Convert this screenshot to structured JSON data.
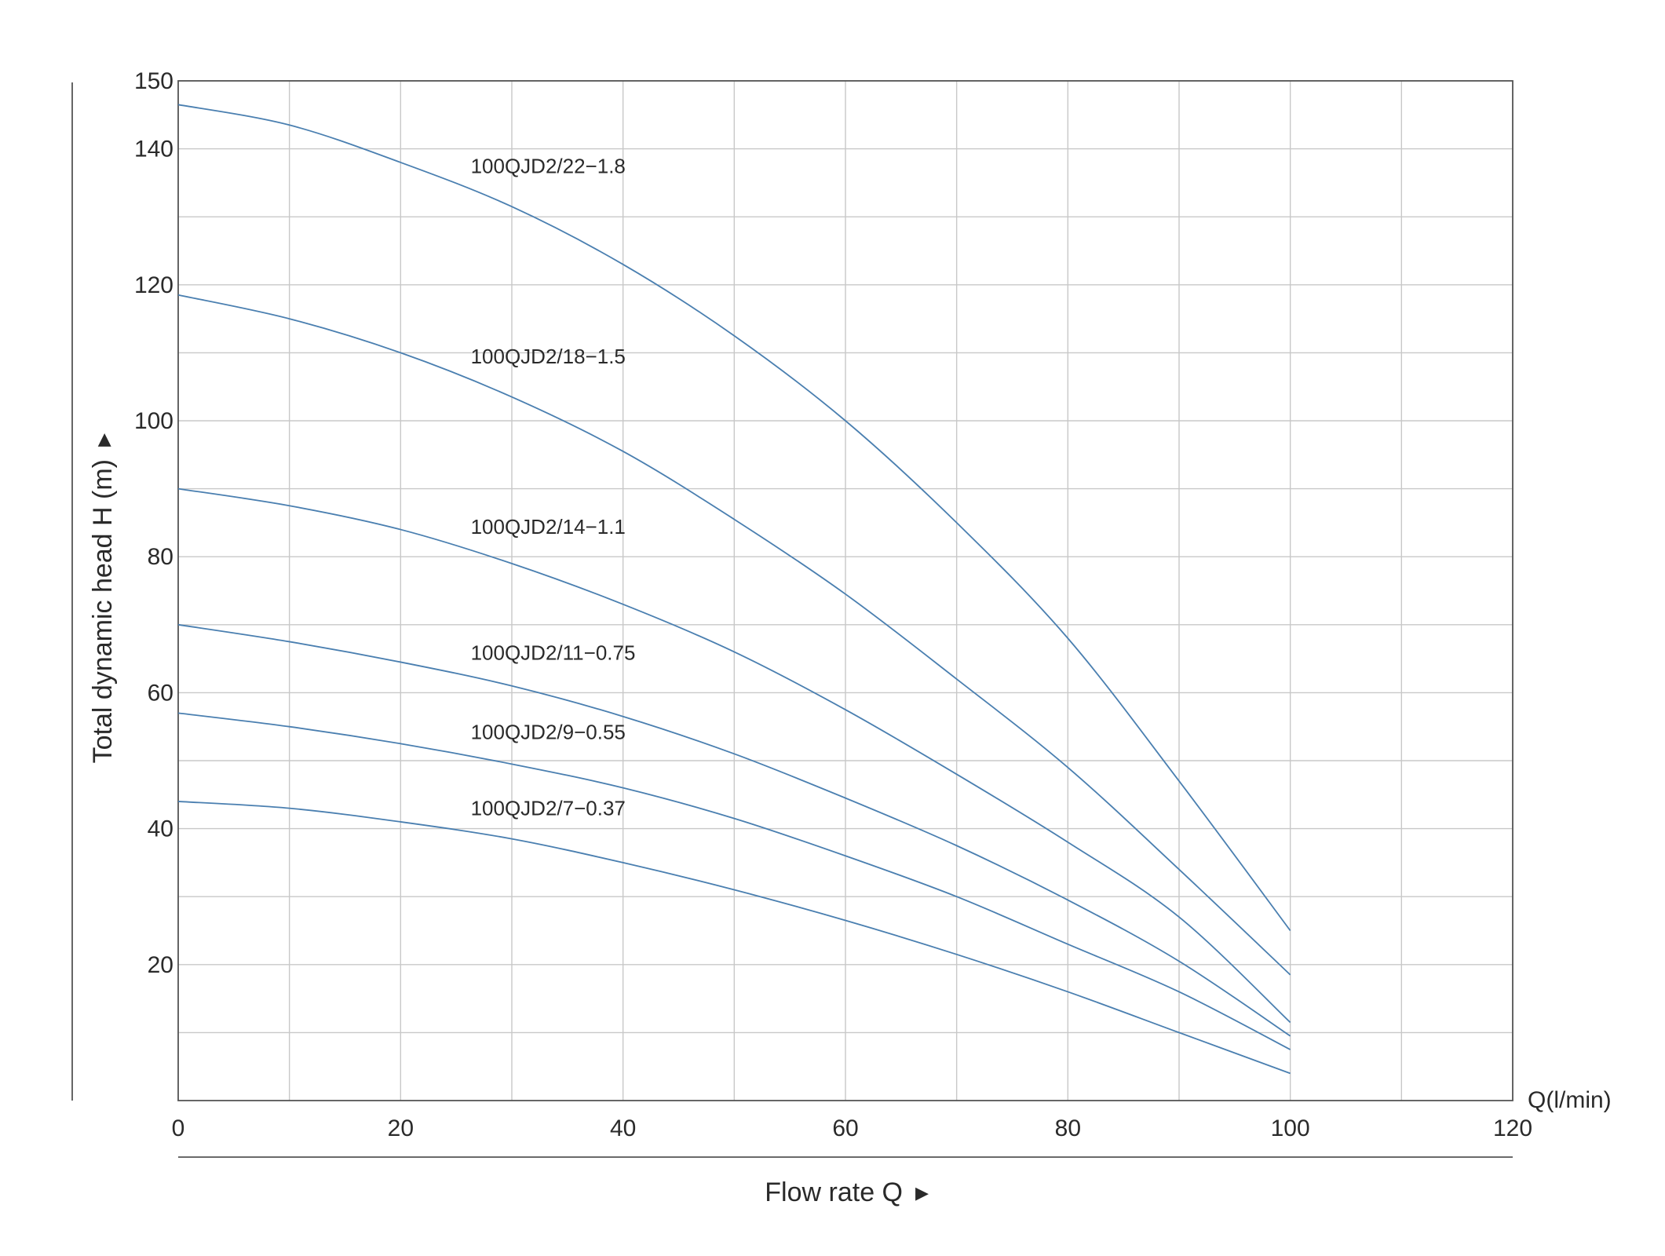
{
  "colors": {
    "curve": "#4a7fb0",
    "grid": "#c8c8c8",
    "frame": "#555555",
    "text": "#2a2a2a"
  },
  "chart_data": {
    "type": "line",
    "xlabel": "Flow rate Q",
    "xlabel_arrow": "▸",
    "ylabel": "Total dynamic head H (m)",
    "ylabel_arrow": "▸",
    "x_unit_label": "Q(l/min)",
    "xlim": [
      0,
      120
    ],
    "ylim": [
      0,
      150
    ],
    "x_ticks": [
      0,
      20,
      40,
      60,
      80,
      100,
      120
    ],
    "y_ticks": [
      20,
      40,
      60,
      80,
      100,
      120,
      140,
      150
    ],
    "x_grid": [
      0,
      10,
      20,
      30,
      40,
      50,
      60,
      70,
      80,
      90,
      100,
      110,
      120
    ],
    "y_grid": [
      10,
      20,
      30,
      40,
      50,
      60,
      70,
      80,
      90,
      100,
      110,
      120,
      130,
      140,
      150
    ],
    "grid": true,
    "x": [
      0,
      10,
      20,
      30,
      40,
      50,
      60,
      70,
      80,
      90,
      100
    ],
    "series": [
      {
        "name": "100QJD2/22−1.8",
        "values": [
          146.5,
          143.5,
          138,
          131.5,
          123,
          112.5,
          100,
          85,
          68,
          47,
          25
        ]
      },
      {
        "name": "100QJD2/18−1.5",
        "values": [
          118.5,
          115,
          110,
          103.5,
          95.5,
          85.5,
          74.5,
          62,
          49,
          34,
          18.5
        ]
      },
      {
        "name": "100QJD2/14−1.1",
        "values": [
          90,
          87.5,
          84,
          79,
          73,
          66,
          57.5,
          48,
          38,
          27,
          11.5
        ]
      },
      {
        "name": "100QJD2/11−0.75",
        "values": [
          70,
          67.5,
          64.5,
          61,
          56.5,
          51,
          44.5,
          37.5,
          29.5,
          20.5,
          9.5
        ]
      },
      {
        "name": "100QJD2/9−0.55",
        "values": [
          57,
          55,
          52.5,
          49.5,
          46,
          41.5,
          36,
          30,
          23,
          16,
          7.5
        ]
      },
      {
        "name": "100QJD2/7−0.37",
        "values": [
          44,
          43,
          41,
          38.5,
          35,
          31,
          26.5,
          21.5,
          16,
          10,
          4
        ]
      }
    ]
  }
}
